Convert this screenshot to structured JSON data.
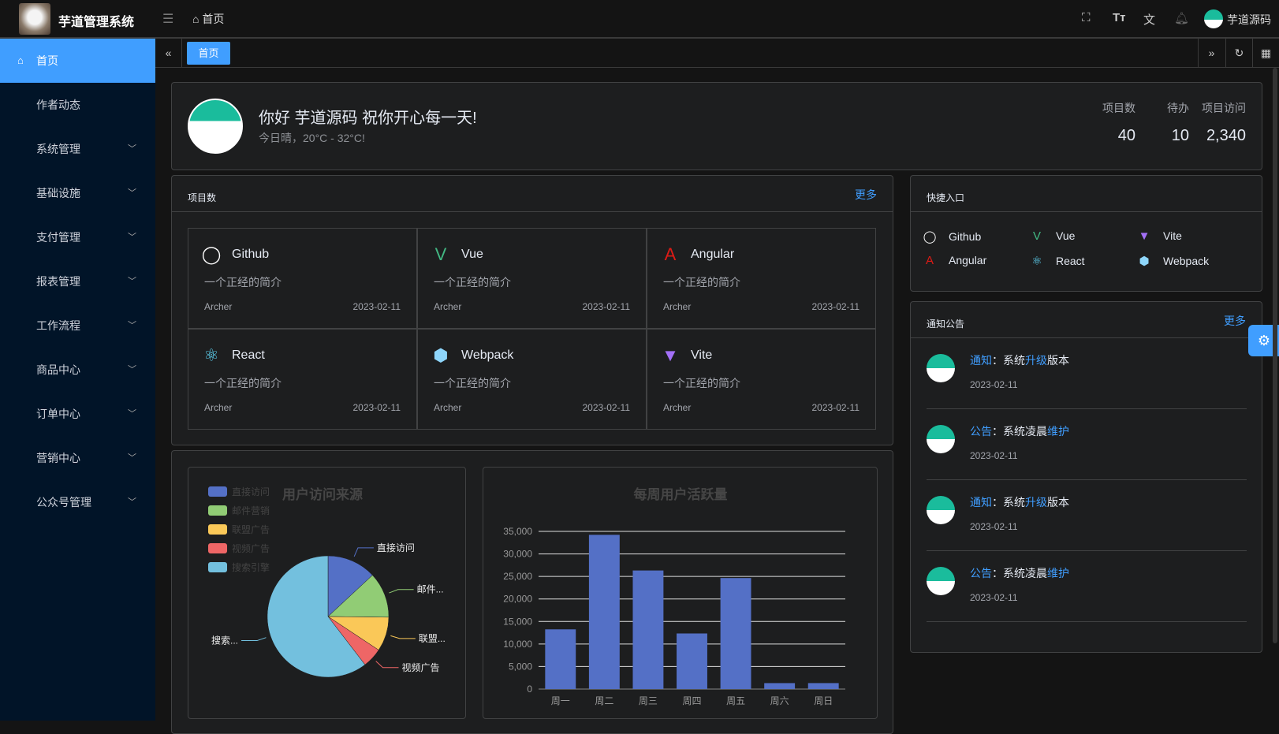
{
  "header": {
    "app_title": "芋道管理系统",
    "breadcrumb": "首页",
    "user_name": "芋道源码",
    "icons": [
      "menu-fold-icon",
      "home-icon",
      "fullscreen-icon",
      "font-size-icon",
      "translate-icon",
      "bell-icon"
    ]
  },
  "sidebar": {
    "items": [
      {
        "label": "首页",
        "active": true
      },
      {
        "label": "作者动态"
      },
      {
        "label": "系统管理"
      },
      {
        "label": "基础设施"
      },
      {
        "label": "支付管理"
      },
      {
        "label": "报表管理"
      },
      {
        "label": "工作流程"
      },
      {
        "label": "商品中心"
      },
      {
        "label": "订单中心"
      },
      {
        "label": "营销中心"
      },
      {
        "label": "公众号管理"
      }
    ]
  },
  "tabs": {
    "items": [
      {
        "label": "首页"
      }
    ]
  },
  "welcome": {
    "greeting": "你好 芋道源码 祝你开心每一天!",
    "weather": "今日晴，20°C - 32°C!",
    "stats": [
      {
        "label": "项目数",
        "value": "40"
      },
      {
        "label": "待办",
        "value": "10"
      },
      {
        "label": "项目访问",
        "value": "2,340"
      }
    ]
  },
  "projects": {
    "title": "项目数",
    "more": "更多",
    "items": [
      {
        "name": "Github",
        "icon": "github-icon",
        "desc": "一个正经的简介",
        "author": "Archer",
        "date": "2023-02-11"
      },
      {
        "name": "Vue",
        "icon": "vue-icon",
        "desc": "一个正经的简介",
        "author": "Archer",
        "date": "2023-02-11"
      },
      {
        "name": "Angular",
        "icon": "angular-icon",
        "desc": "一个正经的简介",
        "author": "Archer",
        "date": "2023-02-11"
      },
      {
        "name": "React",
        "icon": "react-icon",
        "desc": "一个正经的简介",
        "author": "Archer",
        "date": "2023-02-11"
      },
      {
        "name": "Webpack",
        "icon": "webpack-icon",
        "desc": "一个正经的简介",
        "author": "Archer",
        "date": "2023-02-11"
      },
      {
        "name": "Vite",
        "icon": "vite-icon",
        "desc": "一个正经的简介",
        "author": "Archer",
        "date": "2023-02-11"
      }
    ]
  },
  "quick": {
    "title": "快捷入口",
    "items": [
      {
        "name": "Github"
      },
      {
        "name": "Vue"
      },
      {
        "name": "Vite"
      },
      {
        "name": "Angular"
      },
      {
        "name": "React"
      },
      {
        "name": "Webpack"
      }
    ]
  },
  "notices": {
    "title": "通知公告",
    "more": "更多",
    "items": [
      {
        "type": "通知",
        "sep": "：",
        "a": "系统",
        "b": "升级",
        "c": "版本",
        "date": "2023-02-11"
      },
      {
        "type": "公告",
        "sep": "：",
        "a": "系统凌晨",
        "b": "维护",
        "c": "",
        "date": "2023-02-11"
      },
      {
        "type": "通知",
        "sep": "：",
        "a": "系统",
        "b": "升级",
        "c": "版本",
        "date": "2023-02-11"
      },
      {
        "type": "公告",
        "sep": "：",
        "a": "系统凌晨",
        "b": "维护",
        "c": "",
        "date": "2023-02-11"
      }
    ]
  },
  "chart_data": [
    {
      "type": "pie",
      "title": "用户访问来源",
      "legend_position": "top-left",
      "categories": [
        "直接访问",
        "邮件营销",
        "联盟广告",
        "视频广告",
        "搜索引擎"
      ],
      "slice_labels": [
        "直接访问",
        "邮件...",
        "联盟...",
        "视频广告",
        "搜索..."
      ],
      "values": [
        335,
        310,
        234,
        135,
        1548
      ],
      "colors": [
        "#5470c6",
        "#91cc75",
        "#fac858",
        "#ee6666",
        "#73c0de"
      ]
    },
    {
      "type": "bar",
      "title": "每周用户活跃量",
      "categories": [
        "周一",
        "周二",
        "周三",
        "周四",
        "周五",
        "周六",
        "周日"
      ],
      "values": [
        13253,
        34235,
        26321,
        12340,
        24643,
        1322,
        1324
      ],
      "ylim": [
        0,
        35000
      ],
      "yticks": [
        "0",
        "5,000",
        "10,000",
        "15,000",
        "20,000",
        "25,000",
        "30,000",
        "35,000"
      ],
      "grid": true,
      "color": "#5470c6"
    }
  ]
}
